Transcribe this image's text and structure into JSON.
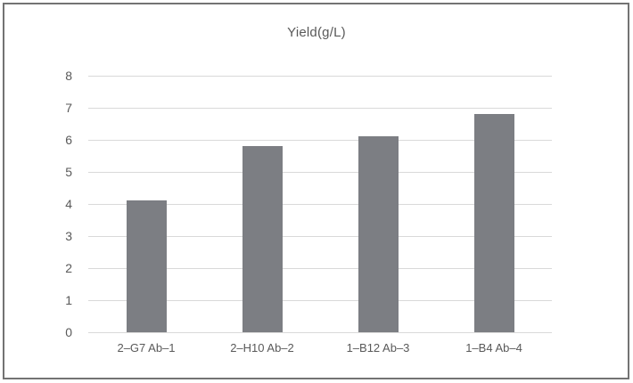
{
  "chart_data": {
    "type": "bar",
    "title": "Yield(g/L)",
    "categories": [
      "2–G7 Ab–1",
      "2–H10 Ab–2",
      "1–B12 Ab–3",
      "1–B4 Ab–4"
    ],
    "values": [
      4.1,
      5.8,
      6.1,
      6.8
    ],
    "xlabel": "",
    "ylabel": "",
    "ylim": [
      0,
      8
    ],
    "yticks": [
      0,
      1,
      2,
      3,
      4,
      5,
      6,
      7,
      8
    ],
    "grid": true,
    "legend": false,
    "colors": {
      "bar": "#7c7e83",
      "gridline": "#d9d9d9",
      "text": "#595959",
      "frame_border": "#737373",
      "background": "#ffffff"
    }
  }
}
